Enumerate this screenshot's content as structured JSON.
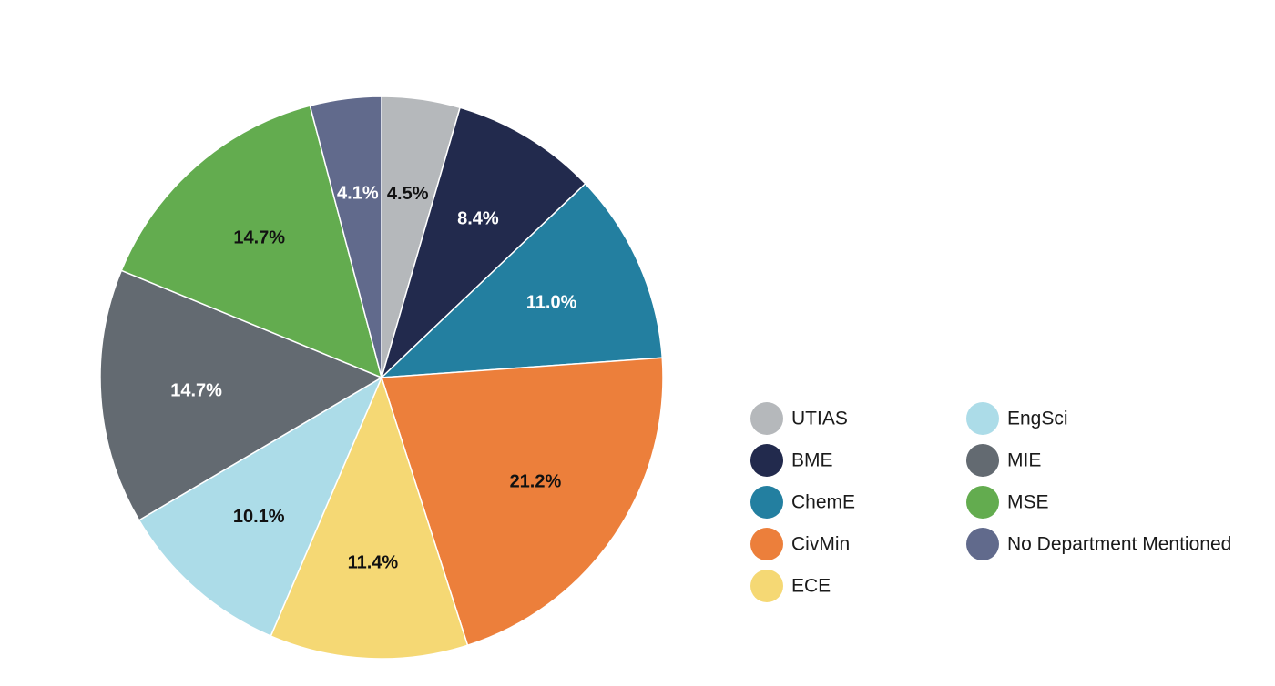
{
  "chart_data": {
    "type": "pie",
    "title": "",
    "start": "top",
    "direction": "clockwise",
    "legend_position": "right",
    "slices": [
      {
        "label": "UTIAS",
        "value": 4.5,
        "display": "4.5%",
        "color": "#b5b8bb",
        "label_color": "#111111"
      },
      {
        "label": "BME",
        "value": 8.4,
        "display": "8.4%",
        "color": "#222a4d",
        "label_color": "#ffffff"
      },
      {
        "label": "ChemE",
        "value": 11.0,
        "display": "11.0%",
        "color": "#237fa0",
        "label_color": "#ffffff"
      },
      {
        "label": "CivMin",
        "value": 21.2,
        "display": "21.2%",
        "color": "#ec7f3b",
        "label_color": "#111111"
      },
      {
        "label": "ECE",
        "value": 11.4,
        "display": "11.4%",
        "color": "#f5d874",
        "label_color": "#111111"
      },
      {
        "label": "EngSci",
        "value": 10.1,
        "display": "10.1%",
        "color": "#acdce8",
        "label_color": "#111111"
      },
      {
        "label": "MIE",
        "value": 14.7,
        "display": "14.7%",
        "color": "#636a71",
        "label_color": "#ffffff"
      },
      {
        "label": "MSE",
        "value": 14.7,
        "display": "14.7%",
        "color": "#63ac4f",
        "label_color": "#111111"
      },
      {
        "label": "No Department Mentioned",
        "value": 4.1,
        "display": "4.1%",
        "color": "#616a8c",
        "label_color": "#ffffff"
      }
    ]
  }
}
